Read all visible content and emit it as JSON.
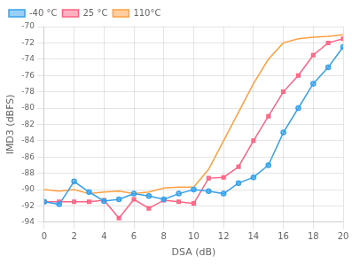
{
  "chart_data": {
    "type": "line",
    "xlabel": "DSA (dB)",
    "ylabel": "IMD3 (dBFS)",
    "x": [
      0,
      1,
      2,
      3,
      4,
      5,
      6,
      7,
      8,
      9,
      10,
      11,
      12,
      13,
      14,
      15,
      16,
      17,
      18,
      19,
      20
    ],
    "series": [
      {
        "name": "-40 °C",
        "marker": "circle",
        "values": [
          -91.5,
          -91.8,
          -89.0,
          -90.3,
          -91.4,
          -91.2,
          -90.5,
          -90.8,
          -91.2,
          -90.5,
          -90.0,
          -90.2,
          -90.5,
          -89.2,
          -88.5,
          -87.0,
          -83.0,
          -80.0,
          -77.0,
          -75.0,
          -72.5
        ]
      },
      {
        "name": "25 °C",
        "marker": "square",
        "values": [
          -91.5,
          -91.5,
          -91.5,
          -91.5,
          -91.3,
          -93.5,
          -91.2,
          -92.3,
          -91.3,
          -91.5,
          -91.7,
          -88.6,
          -88.5,
          -87.2,
          -84.0,
          -81.0,
          -78.0,
          -76.0,
          -73.5,
          -72.0,
          -71.5
        ]
      },
      {
        "name": "110°C",
        "marker": "none",
        "values": [
          -90.0,
          -90.2,
          -90.0,
          -90.5,
          -90.3,
          -90.2,
          -90.5,
          -90.3,
          -89.8,
          -89.7,
          -89.7,
          -87.5,
          -84.0,
          -80.5,
          -77.0,
          -74.0,
          -72.0,
          -71.5,
          -71.3,
          -71.2,
          -71.0
        ]
      }
    ],
    "xlim": [
      0,
      20
    ],
    "ylim": [
      -94,
      -70
    ],
    "xticks": [
      0,
      2,
      4,
      6,
      8,
      10,
      12,
      14,
      16,
      18,
      20
    ],
    "yticks": [
      -94,
      -92,
      -90,
      -88,
      -86,
      -84,
      -82,
      -80,
      -78,
      -76,
      -74,
      -72,
      -70
    ],
    "grid": true,
    "legend": "upper left"
  }
}
